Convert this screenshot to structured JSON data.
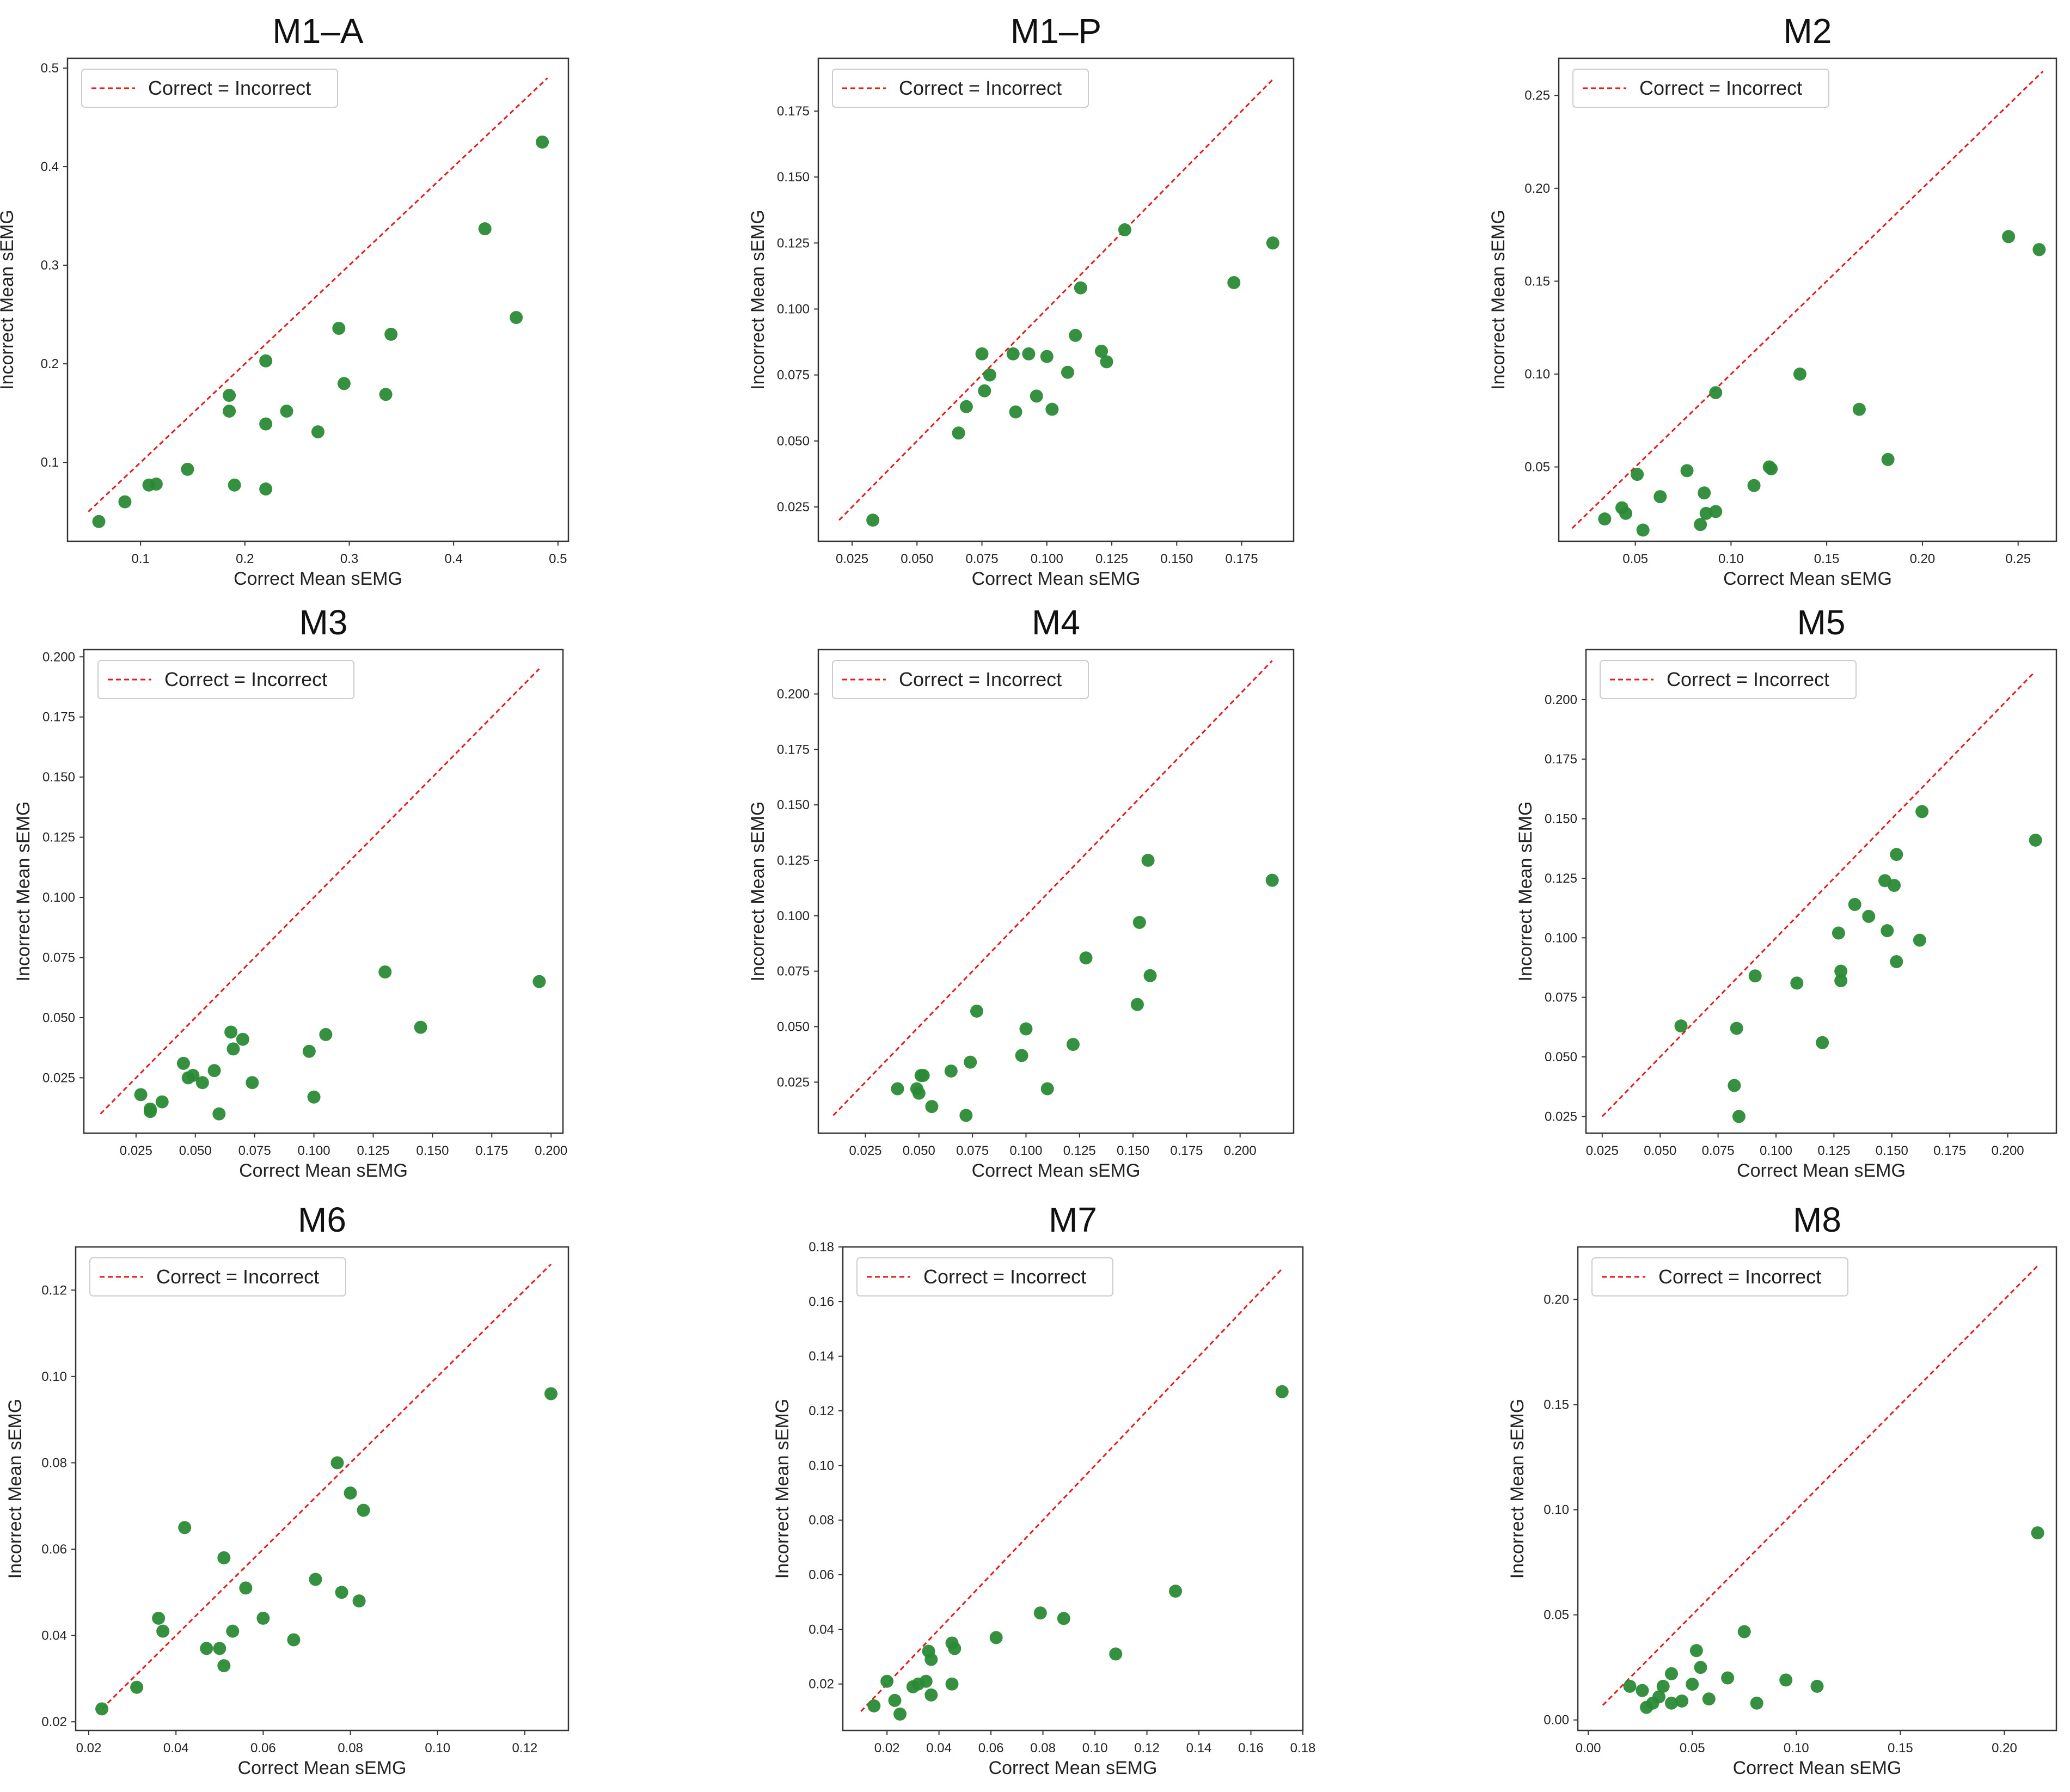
{
  "figure": {
    "background": "#ffffff",
    "marker_color": "#2a8a35",
    "line_color": "#e41a1c",
    "frame_color": "#333333"
  },
  "chart_data": [
    {
      "type": "scatter",
      "title": "M1–A",
      "xlabel": "Correct Mean sEMG",
      "ylabel": "Incorrect Mean sEMG",
      "legend": "Correct = Incorrect",
      "legend_position": "top-left",
      "grid": false,
      "xlim": [
        0.03,
        0.51
      ],
      "ylim": [
        0.02,
        0.51
      ],
      "xticks": [
        0.1,
        0.2,
        0.3,
        0.4,
        0.5
      ],
      "xtick_labels": [
        "0.1",
        "0.2",
        "0.3",
        "0.4",
        "0.5"
      ],
      "yticks": [
        0.1,
        0.2,
        0.3,
        0.4,
        0.5
      ],
      "ytick_labels": [
        "0.1",
        "0.2",
        "0.3",
        "0.4",
        "0.5"
      ],
      "identity_line": [
        0.05,
        0.49
      ],
      "points": [
        [
          0.06,
          0.04
        ],
        [
          0.085,
          0.06
        ],
        [
          0.108,
          0.077
        ],
        [
          0.115,
          0.078
        ],
        [
          0.145,
          0.093
        ],
        [
          0.185,
          0.168
        ],
        [
          0.185,
          0.152
        ],
        [
          0.19,
          0.077
        ],
        [
          0.22,
          0.203
        ],
        [
          0.22,
          0.139
        ],
        [
          0.22,
          0.073
        ],
        [
          0.24,
          0.152
        ],
        [
          0.27,
          0.131
        ],
        [
          0.29,
          0.236
        ],
        [
          0.295,
          0.18
        ],
        [
          0.335,
          0.169
        ],
        [
          0.34,
          0.23
        ],
        [
          0.43,
          0.337
        ],
        [
          0.46,
          0.247
        ],
        [
          0.485,
          0.425
        ]
      ]
    },
    {
      "type": "scatter",
      "title": "M1–P",
      "xlabel": "Correct Mean sEMG",
      "ylabel": "Incorrect Mean sEMG",
      "legend": "Correct = Incorrect",
      "legend_position": "top-left",
      "grid": false,
      "xlim": [
        0.012,
        0.195
      ],
      "ylim": [
        0.012,
        0.195
      ],
      "xticks": [
        0.025,
        0.05,
        0.075,
        0.1,
        0.125,
        0.15,
        0.175
      ],
      "xtick_labels": [
        "0.025",
        "0.050",
        "0.075",
        "0.100",
        "0.125",
        "0.150",
        "0.175"
      ],
      "yticks": [
        0.025,
        0.05,
        0.075,
        0.1,
        0.125,
        0.15,
        0.175
      ],
      "ytick_labels": [
        "0.025",
        "0.050",
        "0.075",
        "0.100",
        "0.125",
        "0.150",
        "0.175"
      ],
      "identity_line": [
        0.02,
        0.187
      ],
      "points": [
        [
          0.033,
          0.02
        ],
        [
          0.066,
          0.053
        ],
        [
          0.069,
          0.063
        ],
        [
          0.075,
          0.083
        ],
        [
          0.076,
          0.069
        ],
        [
          0.078,
          0.075
        ],
        [
          0.087,
          0.083
        ],
        [
          0.088,
          0.061
        ],
        [
          0.093,
          0.083
        ],
        [
          0.096,
          0.067
        ],
        [
          0.1,
          0.082
        ],
        [
          0.102,
          0.062
        ],
        [
          0.108,
          0.076
        ],
        [
          0.111,
          0.09
        ],
        [
          0.113,
          0.108
        ],
        [
          0.121,
          0.084
        ],
        [
          0.123,
          0.08
        ],
        [
          0.13,
          0.13
        ],
        [
          0.172,
          0.11
        ],
        [
          0.187,
          0.125
        ]
      ]
    },
    {
      "type": "scatter",
      "title": "M2",
      "xlabel": "Correct Mean sEMG",
      "ylabel": "Incorrect Mean sEMG",
      "legend": "Correct = Incorrect",
      "legend_position": "top-left",
      "grid": false,
      "xlim": [
        0.01,
        0.27
      ],
      "ylim": [
        0.01,
        0.27
      ],
      "xticks": [
        0.05,
        0.1,
        0.15,
        0.2,
        0.25
      ],
      "xtick_labels": [
        "0.05",
        "0.10",
        "0.15",
        "0.20",
        "0.25"
      ],
      "yticks": [
        0.05,
        0.1,
        0.15,
        0.2,
        0.25
      ],
      "ytick_labels": [
        "0.05",
        "0.10",
        "0.15",
        "0.20",
        "0.25"
      ],
      "identity_line": [
        0.017,
        0.263
      ],
      "points": [
        [
          0.034,
          0.022
        ],
        [
          0.043,
          0.028
        ],
        [
          0.045,
          0.025
        ],
        [
          0.051,
          0.046
        ],
        [
          0.054,
          0.016
        ],
        [
          0.063,
          0.034
        ],
        [
          0.077,
          0.048
        ],
        [
          0.084,
          0.019
        ],
        [
          0.086,
          0.036
        ],
        [
          0.087,
          0.025
        ],
        [
          0.092,
          0.026
        ],
        [
          0.092,
          0.09
        ],
        [
          0.112,
          0.04
        ],
        [
          0.12,
          0.05
        ],
        [
          0.121,
          0.049
        ],
        [
          0.136,
          0.1
        ],
        [
          0.167,
          0.081
        ],
        [
          0.182,
          0.054
        ],
        [
          0.245,
          0.174
        ],
        [
          0.261,
          0.167
        ]
      ]
    },
    {
      "type": "scatter",
      "title": "M3",
      "xlabel": "Correct Mean sEMG",
      "ylabel": "Incorrect Mean sEMG",
      "legend": "Correct = Incorrect",
      "legend_position": "top-left",
      "grid": false,
      "xlim": [
        0.003,
        0.205
      ],
      "ylim": [
        0.002,
        0.203
      ],
      "xticks": [
        0.025,
        0.05,
        0.075,
        0.1,
        0.125,
        0.15,
        0.175,
        0.2
      ],
      "xtick_labels": [
        "0.025",
        "0.050",
        "0.075",
        "0.100",
        "0.125",
        "0.150",
        "0.175",
        "0.200"
      ],
      "yticks": [
        0.025,
        0.05,
        0.075,
        0.1,
        0.125,
        0.15,
        0.175,
        0.2
      ],
      "ytick_labels": [
        "0.025",
        "0.050",
        "0.075",
        "0.100",
        "0.125",
        "0.150",
        "0.175",
        "0.200"
      ],
      "identity_line": [
        0.01,
        0.195
      ],
      "points": [
        [
          0.027,
          0.018
        ],
        [
          0.031,
          0.012
        ],
        [
          0.031,
          0.011
        ],
        [
          0.036,
          0.015
        ],
        [
          0.045,
          0.031
        ],
        [
          0.047,
          0.025
        ],
        [
          0.049,
          0.026
        ],
        [
          0.053,
          0.023
        ],
        [
          0.058,
          0.028
        ],
        [
          0.06,
          0.01
        ],
        [
          0.065,
          0.044
        ],
        [
          0.066,
          0.037
        ],
        [
          0.07,
          0.041
        ],
        [
          0.074,
          0.023
        ],
        [
          0.098,
          0.036
        ],
        [
          0.1,
          0.017
        ],
        [
          0.105,
          0.043
        ],
        [
          0.13,
          0.069
        ],
        [
          0.145,
          0.046
        ],
        [
          0.195,
          0.065
        ]
      ]
    },
    {
      "type": "scatter",
      "title": "M4",
      "xlabel": "Correct Mean sEMG",
      "ylabel": "Incorrect Mean sEMG",
      "legend": "Correct = Incorrect",
      "legend_position": "top-left",
      "grid": false,
      "xlim": [
        0.003,
        0.225
      ],
      "ylim": [
        0.002,
        0.22
      ],
      "xticks": [
        0.025,
        0.05,
        0.075,
        0.1,
        0.125,
        0.15,
        0.175,
        0.2
      ],
      "xtick_labels": [
        "0.025",
        "0.050",
        "0.075",
        "0.100",
        "0.125",
        "0.150",
        "0.175",
        "0.200"
      ],
      "yticks": [
        0.025,
        0.05,
        0.075,
        0.1,
        0.125,
        0.15,
        0.175,
        0.2
      ],
      "ytick_labels": [
        "0.025",
        "0.050",
        "0.075",
        "0.100",
        "0.125",
        "0.150",
        "0.175",
        "0.200"
      ],
      "identity_line": [
        0.01,
        0.215
      ],
      "points": [
        [
          0.04,
          0.022
        ],
        [
          0.049,
          0.022
        ],
        [
          0.05,
          0.02
        ],
        [
          0.051,
          0.028
        ],
        [
          0.052,
          0.028
        ],
        [
          0.056,
          0.014
        ],
        [
          0.065,
          0.03
        ],
        [
          0.072,
          0.01
        ],
        [
          0.074,
          0.034
        ],
        [
          0.077,
          0.057
        ],
        [
          0.098,
          0.037
        ],
        [
          0.1,
          0.049
        ],
        [
          0.122,
          0.042
        ],
        [
          0.11,
          0.022
        ],
        [
          0.128,
          0.081
        ],
        [
          0.152,
          0.06
        ],
        [
          0.153,
          0.097
        ],
        [
          0.157,
          0.125
        ],
        [
          0.158,
          0.073
        ],
        [
          0.215,
          0.116
        ]
      ]
    },
    {
      "type": "scatter",
      "title": "M5",
      "xlabel": "Correct Mean sEMG",
      "ylabel": "Incorrect Mean sEMG",
      "legend": "Correct = Incorrect",
      "legend_position": "top-left",
      "grid": false,
      "xlim": [
        0.018,
        0.221
      ],
      "ylim": [
        0.018,
        0.221
      ],
      "xticks": [
        0.025,
        0.05,
        0.075,
        0.1,
        0.125,
        0.15,
        0.175,
        0.2
      ],
      "xtick_labels": [
        "0.025",
        "0.050",
        "0.075",
        "0.100",
        "0.125",
        "0.150",
        "0.175",
        "0.200"
      ],
      "yticks": [
        0.025,
        0.05,
        0.075,
        0.1,
        0.125,
        0.15,
        0.175,
        0.2
      ],
      "ytick_labels": [
        "0.025",
        "0.050",
        "0.075",
        "0.100",
        "0.125",
        "0.150",
        "0.175",
        "0.200"
      ],
      "identity_line": [
        0.025,
        0.211
      ],
      "points": [
        [
          0.059,
          0.063
        ],
        [
          0.082,
          0.038
        ],
        [
          0.083,
          0.062
        ],
        [
          0.084,
          0.025
        ],
        [
          0.091,
          0.084
        ],
        [
          0.109,
          0.081
        ],
        [
          0.12,
          0.056
        ],
        [
          0.127,
          0.102
        ],
        [
          0.128,
          0.082
        ],
        [
          0.128,
          0.086
        ],
        [
          0.134,
          0.114
        ],
        [
          0.14,
          0.109
        ],
        [
          0.147,
          0.124
        ],
        [
          0.148,
          0.103
        ],
        [
          0.151,
          0.122
        ],
        [
          0.152,
          0.135
        ],
        [
          0.152,
          0.09
        ],
        [
          0.162,
          0.099
        ],
        [
          0.163,
          0.153
        ],
        [
          0.212,
          0.141
        ]
      ]
    },
    {
      "type": "scatter",
      "title": "M6",
      "xlabel": "Correct Mean sEMG",
      "ylabel": "Incorrect Mean sEMG",
      "legend": "Correct = Incorrect",
      "legend_position": "top-left",
      "grid": false,
      "xlim": [
        0.017,
        0.13
      ],
      "ylim": [
        0.018,
        0.13
      ],
      "xticks": [
        0.02,
        0.04,
        0.06,
        0.08,
        0.1,
        0.12
      ],
      "xtick_labels": [
        "0.02",
        "0.04",
        "0.06",
        "0.08",
        "0.10",
        "0.12"
      ],
      "yticks": [
        0.02,
        0.04,
        0.06,
        0.08,
        0.1,
        0.12
      ],
      "ytick_labels": [
        "0.02",
        "0.04",
        "0.06",
        "0.08",
        "0.10",
        "0.12"
      ],
      "identity_line": [
        0.023,
        0.126
      ],
      "points": [
        [
          0.023,
          0.023
        ],
        [
          0.031,
          0.028
        ],
        [
          0.036,
          0.044
        ],
        [
          0.037,
          0.041
        ],
        [
          0.042,
          0.065
        ],
        [
          0.047,
          0.037
        ],
        [
          0.05,
          0.037
        ],
        [
          0.051,
          0.058
        ],
        [
          0.051,
          0.033
        ],
        [
          0.053,
          0.041
        ],
        [
          0.056,
          0.051
        ],
        [
          0.06,
          0.044
        ],
        [
          0.067,
          0.039
        ],
        [
          0.072,
          0.053
        ],
        [
          0.077,
          0.08
        ],
        [
          0.078,
          0.05
        ],
        [
          0.08,
          0.073
        ],
        [
          0.082,
          0.048
        ],
        [
          0.083,
          0.069
        ],
        [
          0.126,
          0.096
        ]
      ]
    },
    {
      "type": "scatter",
      "title": "M7",
      "xlabel": "Correct Mean sEMG",
      "ylabel": "Incorrect Mean sEMG",
      "legend": "Correct = Incorrect",
      "legend_position": "top-left",
      "grid": false,
      "xlim": [
        0.003,
        0.18
      ],
      "ylim": [
        0.003,
        0.18
      ],
      "xticks": [
        0.02,
        0.04,
        0.06,
        0.08,
        0.1,
        0.12,
        0.14,
        0.16,
        0.18
      ],
      "xtick_labels": [
        "0.02",
        "0.04",
        "0.06",
        "0.08",
        "0.10",
        "0.12",
        "0.14",
        "0.16",
        "0.18"
      ],
      "yticks": [
        0.02,
        0.04,
        0.06,
        0.08,
        0.1,
        0.12,
        0.14,
        0.16,
        0.18
      ],
      "ytick_labels": [
        "0.02",
        "0.04",
        "0.06",
        "0.08",
        "0.10",
        "0.12",
        "0.14",
        "0.16",
        "0.18"
      ],
      "identity_line": [
        0.01,
        0.172
      ],
      "points": [
        [
          0.015,
          0.012
        ],
        [
          0.02,
          0.021
        ],
        [
          0.023,
          0.014
        ],
        [
          0.025,
          0.009
        ],
        [
          0.03,
          0.019
        ],
        [
          0.032,
          0.02
        ],
        [
          0.035,
          0.021
        ],
        [
          0.036,
          0.032
        ],
        [
          0.037,
          0.029
        ],
        [
          0.037,
          0.016
        ],
        [
          0.045,
          0.035
        ],
        [
          0.046,
          0.033
        ],
        [
          0.045,
          0.02
        ],
        [
          0.062,
          0.037
        ],
        [
          0.079,
          0.046
        ],
        [
          0.088,
          0.044
        ],
        [
          0.108,
          0.031
        ],
        [
          0.131,
          0.054
        ],
        [
          0.172,
          0.127
        ]
      ]
    },
    {
      "type": "scatter",
      "title": "M8",
      "xlabel": "Correct Mean sEMG",
      "ylabel": "Incorrect Mean sEMG",
      "legend": "Correct = Incorrect",
      "legend_position": "top-left",
      "grid": false,
      "xlim": [
        -0.005,
        0.225
      ],
      "ylim": [
        -0.005,
        0.225
      ],
      "xticks": [
        0.0,
        0.05,
        0.1,
        0.15,
        0.2
      ],
      "xtick_labels": [
        "0.00",
        "0.05",
        "0.10",
        "0.15",
        "0.20"
      ],
      "yticks": [
        0.0,
        0.05,
        0.1,
        0.15,
        0.2
      ],
      "ytick_labels": [
        "0.00",
        "0.05",
        "0.10",
        "0.15",
        "0.20"
      ],
      "identity_line": [
        0.007,
        0.216
      ],
      "points": [
        [
          0.02,
          0.016
        ],
        [
          0.026,
          0.014
        ],
        [
          0.028,
          0.006
        ],
        [
          0.031,
          0.008
        ],
        [
          0.034,
          0.011
        ],
        [
          0.036,
          0.016
        ],
        [
          0.04,
          0.022
        ],
        [
          0.04,
          0.008
        ],
        [
          0.045,
          0.009
        ],
        [
          0.05,
          0.017
        ],
        [
          0.052,
          0.033
        ],
        [
          0.054,
          0.025
        ],
        [
          0.058,
          0.01
        ],
        [
          0.067,
          0.02
        ],
        [
          0.075,
          0.042
        ],
        [
          0.081,
          0.008
        ],
        [
          0.095,
          0.019
        ],
        [
          0.11,
          0.016
        ],
        [
          0.216,
          0.089
        ]
      ]
    }
  ]
}
